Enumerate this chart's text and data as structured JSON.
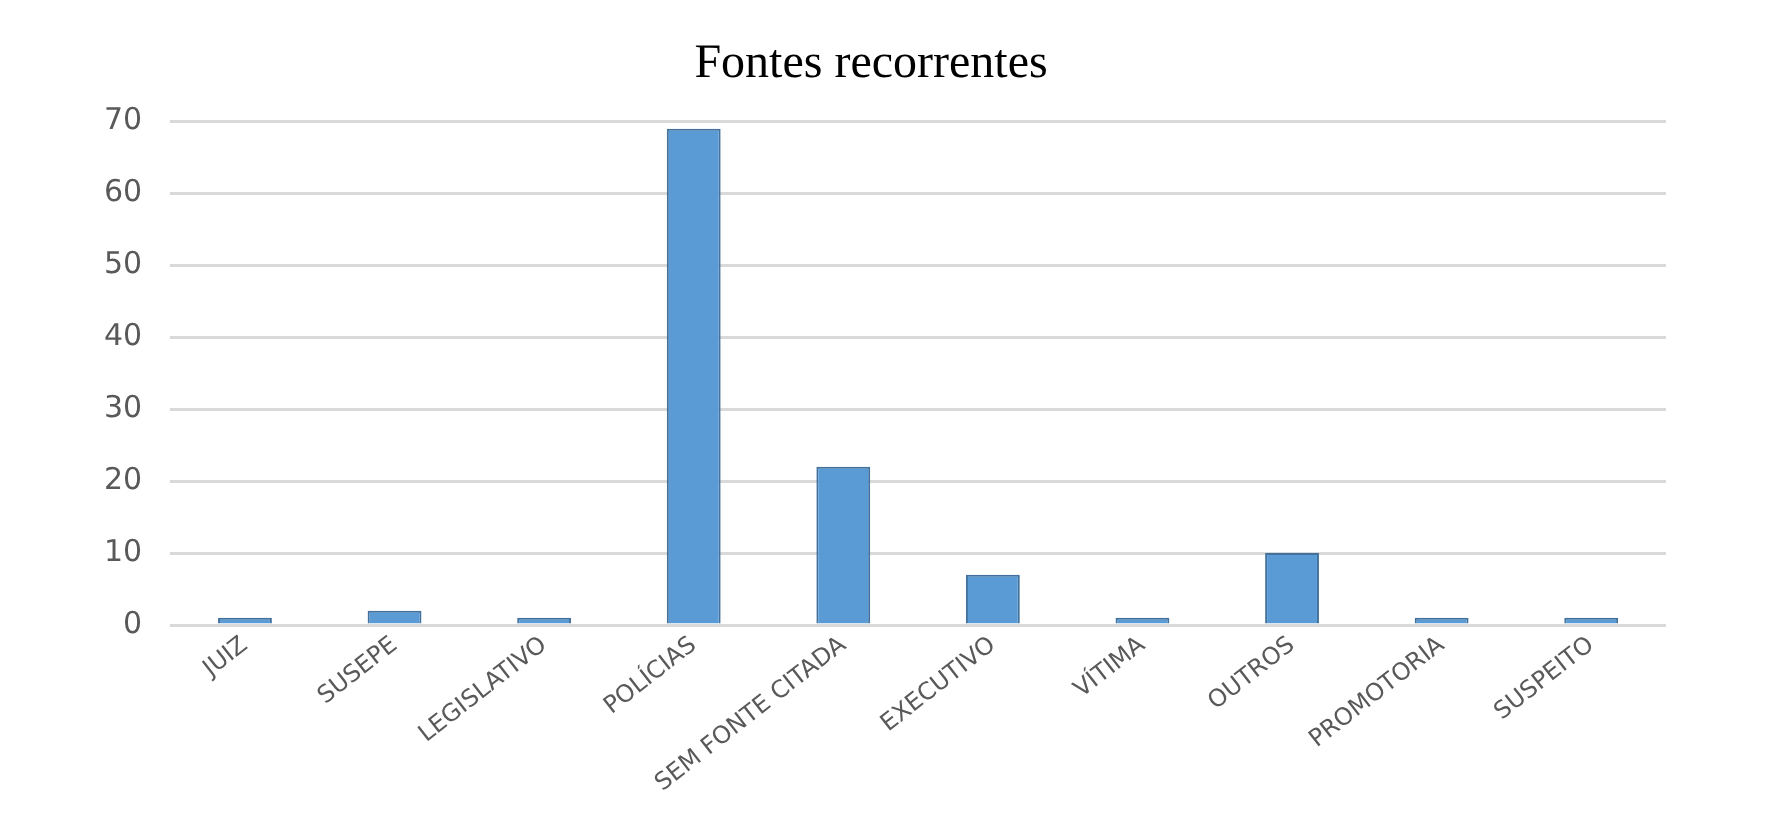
{
  "chart_data": {
    "type": "bar",
    "title": "Fontes recorrentes",
    "categories": [
      "JUIZ",
      "SUSEPE",
      "LEGISLATIVO",
      "POLÍCIAS",
      "SEM FONTE CITADA",
      "EXECUTIVO",
      "VÍTIMA",
      "OUTROS",
      "PROMOTORIA",
      "SUSPEITO"
    ],
    "values": [
      1,
      2,
      1,
      69,
      22,
      7,
      1,
      10,
      1,
      1
    ],
    "color": "#5b9bd5",
    "ylim": [
      0,
      70
    ],
    "yticks": [
      0,
      10,
      20,
      30,
      40,
      50,
      60,
      70
    ],
    "grid": "y",
    "legend": false
  }
}
